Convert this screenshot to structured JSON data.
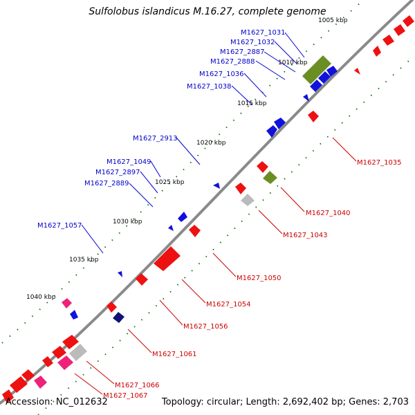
{
  "title": "Sulfolobus islandicus M.16.27, complete genome",
  "footer": {
    "accession": "Accession: NC_012632",
    "topology": "Topology: circular; Length: 2,692,402 bp; Genes: 2,703"
  },
  "colors": {
    "backbone": "#8a8a8a",
    "plus_strand_label": "#0000cc",
    "minus_strand_label": "#cc0000",
    "gene_red": "#ee1111",
    "gene_blue": "#1111dd",
    "gene_olive": "#6b8e23",
    "gene_pink": "#ee2277",
    "gene_gray": "#bbbbbb",
    "gene_navy": "#111177",
    "tick_green": "#117711"
  },
  "tick_labels": [
    "1005 kbp",
    "1010 kbp",
    "1015 kbp",
    "1020 kbp",
    "1025 kbp",
    "1030 kbp",
    "1035 kbp",
    "1040 kbp"
  ],
  "gene_labels_plus": [
    "M1627_1031",
    "M1627_1032",
    "M1627_2887",
    "M1627_2888",
    "M1627_1036",
    "M1627_1038",
    "M1627_2913",
    "M1627_1049",
    "M1627_2897",
    "M1627_2889",
    "M1627_1057"
  ],
  "gene_labels_minus": [
    "M1627_1035",
    "M1627_1040",
    "M1627_1043",
    "M1627_1050",
    "M1627_1054",
    "M1627_1056",
    "M1627_1061",
    "M1627_1066",
    "M1627_1067"
  ]
}
